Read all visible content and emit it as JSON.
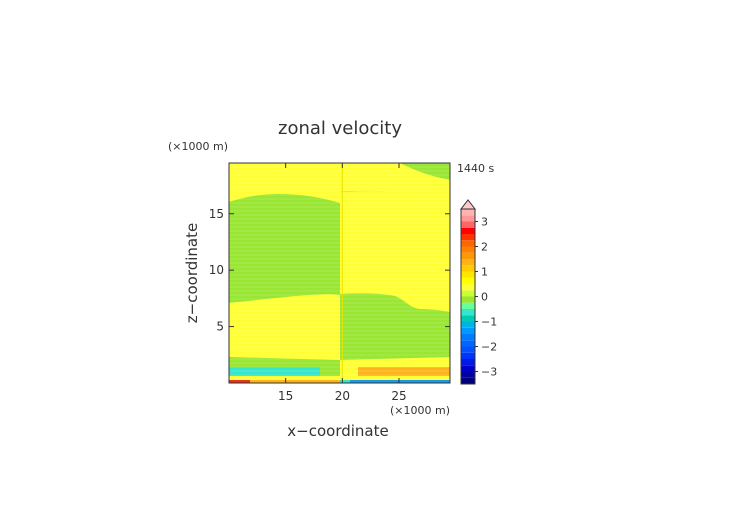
{
  "colors": {
    "yellow": "#ffff33",
    "green": "#99e633",
    "cyan": "#33e6cc",
    "blue": "#1a99e6",
    "orange": "#ffb31a",
    "red": "#e6331a"
  },
  "chart_data": {
    "type": "heatmap",
    "title": "zonal velocity",
    "time_label": "1440 s",
    "xlabel": "x−coordinate",
    "ylabel": "z−coordinate",
    "x_unit": "(×1000 m)",
    "y_unit": "(×1000 m)",
    "xlim": [
      10,
      29.5
    ],
    "ylim": [
      0,
      19.5
    ],
    "x_ticks": [
      15,
      20,
      25
    ],
    "y_ticks": [
      5,
      10,
      15
    ],
    "colorbar": {
      "levels": [
        {
          "value": -3.5,
          "color": "#00007a"
        },
        {
          "value": -3.25,
          "color": "#0000a3"
        },
        {
          "value": -3.0,
          "color": "#0000cc"
        },
        {
          "value": -2.75,
          "color": "#001ae6"
        },
        {
          "value": -2.5,
          "color": "#0033ff"
        },
        {
          "value": -2.25,
          "color": "#0052ff"
        },
        {
          "value": -2.0,
          "color": "#0066ff"
        },
        {
          "value": -1.75,
          "color": "#007aff"
        },
        {
          "value": -1.5,
          "color": "#0099ff"
        },
        {
          "value": -1.25,
          "color": "#00b3e6"
        },
        {
          "value": -1.0,
          "color": "#00ccb3"
        },
        {
          "value": -0.75,
          "color": "#33e6cc"
        },
        {
          "value": -0.5,
          "color": "#66ff99"
        },
        {
          "value": -0.25,
          "color": "#99e633"
        },
        {
          "value": 0.0,
          "color": "#ccff33"
        },
        {
          "value": 0.25,
          "color": "#ffff33"
        },
        {
          "value": 0.5,
          "color": "#ffff00"
        },
        {
          "value": 0.75,
          "color": "#ffe600"
        },
        {
          "value": 1.0,
          "color": "#ffcc00"
        },
        {
          "value": 1.25,
          "color": "#ffb31a"
        },
        {
          "value": 1.5,
          "color": "#ff9900"
        },
        {
          "value": 1.75,
          "color": "#ff8000"
        },
        {
          "value": 2.0,
          "color": "#ff6600"
        },
        {
          "value": 2.25,
          "color": "#ff3300"
        },
        {
          "value": 2.5,
          "color": "#ff0000"
        },
        {
          "value": 2.75,
          "color": "#ff6666"
        },
        {
          "value": 3.0,
          "color": "#ff9999"
        },
        {
          "value": 3.25,
          "color": "#ffb3b3"
        }
      ],
      "tick_labels": [
        {
          "value": 3,
          "label": "3"
        },
        {
          "value": 2,
          "label": "2"
        },
        {
          "value": 1,
          "label": "1"
        },
        {
          "value": 0,
          "label": "0"
        },
        {
          "value": -1,
          "label": "−1"
        },
        {
          "value": -2,
          "label": "−2"
        },
        {
          "value": -3,
          "label": "−3"
        }
      ],
      "range": [
        -3.5,
        3.5
      ]
    }
  }
}
